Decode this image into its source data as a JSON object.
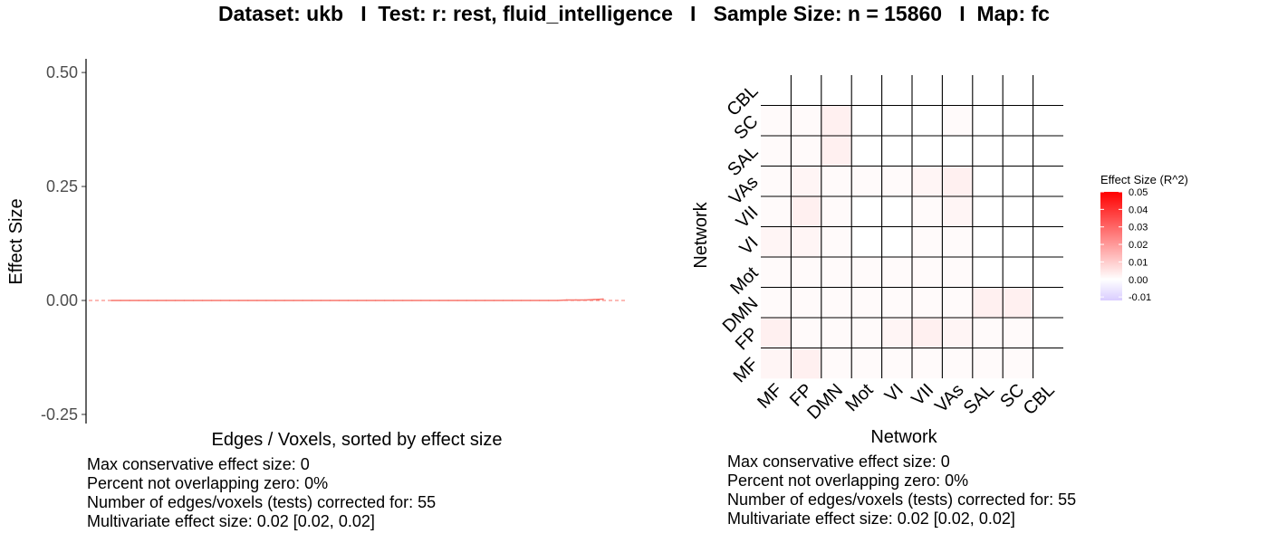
{
  "title": "Dataset: ukb   I  Test: r: rest, fluid_intelligence   I   Sample Size: n = 15860   I  Map: fc",
  "chart_data": [
    {
      "type": "line",
      "xlabel": "Edges / Voxels, sorted by effect size",
      "ylabel": "Effect Size",
      "ylim": [
        -0.27,
        0.53
      ],
      "yticks": [
        "0.50",
        "0.25",
        "0.00",
        "-0.25"
      ],
      "ytick_values": [
        0.5,
        0.25,
        0.0,
        -0.25
      ],
      "series": [
        {
          "values": [
            0.0,
            0.0,
            0.0,
            0.0,
            0.0,
            0.0,
            0.0,
            0.0,
            0.0,
            0.0,
            0.0,
            0.0,
            0.0,
            0.0,
            0.0,
            0.0,
            0.0,
            0.0,
            0.0,
            0.0,
            0.0,
            0.0,
            0.0,
            0.0,
            0.0,
            0.0,
            0.0,
            0.0,
            0.0,
            0.0,
            0.0,
            0.0,
            0.0,
            0.0,
            0.0,
            0.0,
            0.0,
            0.0,
            0.0,
            0.0,
            0.0,
            0.0,
            0.0,
            0.0,
            0.0,
            0.0,
            0.0,
            0.0,
            0.0,
            0.0,
            0.001,
            0.001,
            0.001,
            0.002,
            0.003
          ]
        }
      ],
      "zero_line": 0.0,
      "colors": {
        "series": "#f8766d",
        "zero_line": "#f8766d"
      },
      "grid": false,
      "stats": [
        "Max conservative effect size: 0",
        "Percent not overlapping zero: 0%",
        "Number of edges/voxels (tests) corrected for: 55",
        "Multivariate effect size: 0.02 [0.02, 0.02]"
      ]
    },
    {
      "type": "heatmap",
      "xlabel": "Network",
      "ylabel": "Network",
      "x_categories": [
        "MF",
        "FP",
        "DMN",
        "Mot",
        "VI",
        "VII",
        "VAs",
        "SAL",
        "SC",
        "CBL"
      ],
      "y_categories": [
        "MF",
        "FP",
        "DMN",
        "Mot",
        "VI",
        "VII",
        "VAs",
        "SAL",
        "SC",
        "CBL"
      ],
      "values": [
        [
          0.002,
          0.003,
          0.001,
          0.001,
          0.001,
          0.001,
          0.001,
          0.001,
          0.001,
          0.0
        ],
        [
          0.003,
          0.001,
          0.001,
          0.001,
          0.002,
          0.003,
          0.002,
          0.001,
          0.001,
          0.0
        ],
        [
          0.001,
          0.001,
          0.001,
          0.001,
          0.001,
          0.001,
          0.001,
          0.003,
          0.003,
          0.0
        ],
        [
          0.001,
          0.001,
          0.001,
          0.001,
          0.001,
          0.001,
          0.001,
          0.0,
          0.0,
          0.0
        ],
        [
          0.002,
          0.002,
          0.001,
          0.0,
          0.0,
          0.001,
          0.001,
          0.0,
          0.0,
          0.0
        ],
        [
          0.001,
          0.003,
          0.001,
          0.0,
          0.0,
          0.001,
          0.002,
          0.0,
          0.0,
          0.0
        ],
        [
          0.001,
          0.002,
          0.001,
          0.001,
          0.001,
          0.002,
          0.003,
          0.0,
          0.0,
          0.0
        ],
        [
          0.001,
          0.001,
          0.003,
          0.0,
          0.0,
          0.0,
          0.0,
          0.0,
          0.0,
          0.0
        ],
        [
          0.001,
          0.001,
          0.003,
          0.0,
          0.0,
          0.0,
          0.001,
          0.0,
          0.0,
          0.0
        ],
        [
          0.0,
          0.0,
          0.0,
          0.0,
          0.0,
          0.0,
          0.0,
          0.0,
          0.0,
          0.0
        ]
      ],
      "legend": {
        "title": "Effect Size (R^2)",
        "ticks": [
          "0.05",
          "0.04",
          "0.03",
          "0.02",
          "0.01",
          "0.00",
          "-0.01"
        ],
        "tick_values": [
          0.05,
          0.04,
          0.03,
          0.02,
          0.01,
          0.0,
          -0.01
        ],
        "range": [
          -0.012,
          0.05
        ],
        "placement": "right"
      },
      "colors": {
        "low": "#d9ccff",
        "mid": "#ffffff",
        "high": "#ff0000"
      },
      "stats": [
        "Max conservative effect size: 0",
        "Percent not overlapping zero: 0%",
        "Number of edges/voxels (tests) corrected for: 55",
        "Multivariate effect size: 0.02 [0.02, 0.02]"
      ]
    }
  ]
}
